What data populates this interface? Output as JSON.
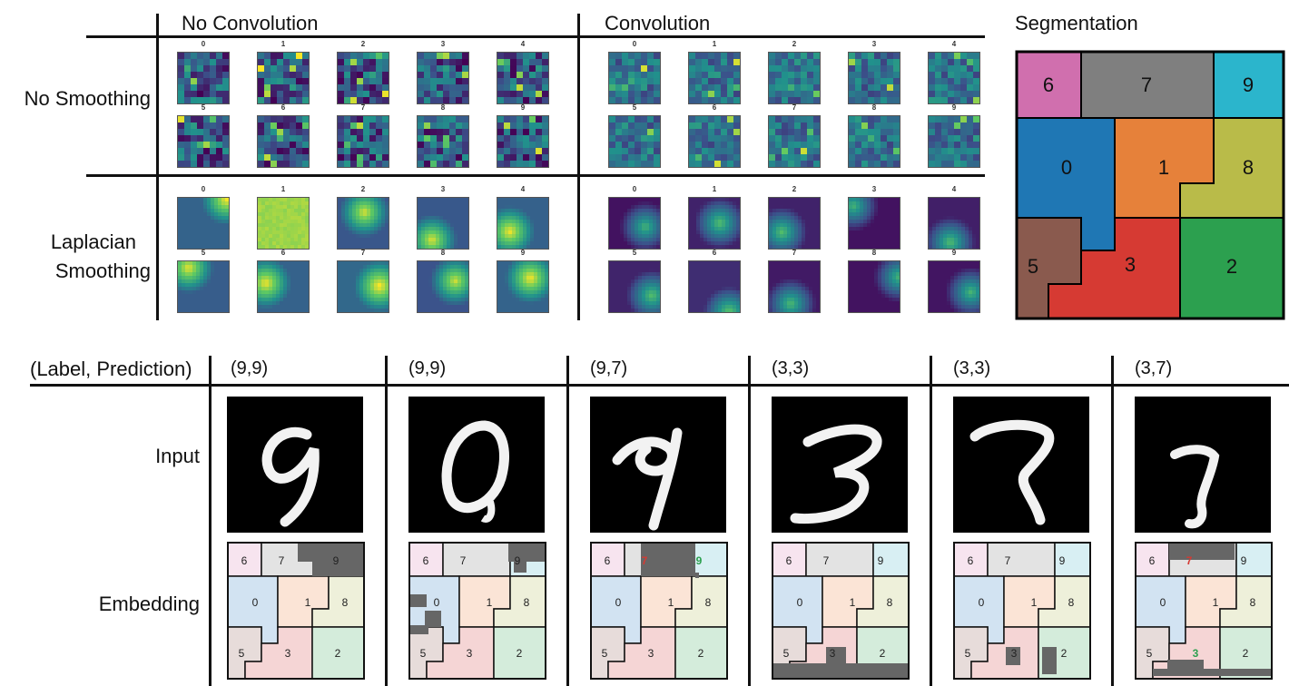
{
  "headers": {
    "no_convolution": "No Convolution",
    "convolution": "Convolution",
    "segmentation": "Segmentation"
  },
  "row_labels": {
    "no_smoothing": "No Smoothing",
    "laplacian_line1": "Laplacian",
    "laplacian_line2": "Smoothing",
    "label_prediction": "(Label, Prediction)",
    "input": "Input",
    "embedding": "Embedding"
  },
  "heatmap_indices": [
    "0",
    "1",
    "2",
    "3",
    "4",
    "5",
    "6",
    "7",
    "8",
    "9"
  ],
  "segmentation": {
    "regions": [
      {
        "label": "6",
        "color": "#d06fae"
      },
      {
        "label": "7",
        "color": "#7f7f7f"
      },
      {
        "label": "9",
        "color": "#2bb5cc"
      },
      {
        "label": "0",
        "color": "#1f77b4"
      },
      {
        "label": "1",
        "color": "#e6813a"
      },
      {
        "label": "8",
        "color": "#b9bb49"
      },
      {
        "label": "5",
        "color": "#8a5a4e"
      },
      {
        "label": "3",
        "color": "#d63a33"
      },
      {
        "label": "2",
        "color": "#2ca04f"
      }
    ]
  },
  "examples": [
    {
      "pair": "(9,9)",
      "digit": "9"
    },
    {
      "pair": "(9,9)",
      "digit": "0"
    },
    {
      "pair": "(9,7)",
      "digit": "9"
    },
    {
      "pair": "(3,3)",
      "digit": "3"
    },
    {
      "pair": "(3,3)",
      "digit": "7"
    },
    {
      "pair": "(3,7)",
      "digit": "7"
    }
  ],
  "embedding_labels": [
    "6",
    "7",
    "9",
    "0",
    "1",
    "8",
    "5",
    "3",
    "2"
  ],
  "colors": {
    "pale_6": "#f7e4ef",
    "pale_7": "#e3e3e3",
    "pale_9": "#d8eff3",
    "pale_0": "#d2e3f2",
    "pale_1": "#fbe4d6",
    "pale_8": "#eef0da",
    "pale_5": "#e7dcda",
    "pale_3": "#f5d5d5",
    "pale_2": "#d4ecdb",
    "activation": "#666666",
    "wrong_label": "#d63a33",
    "correct_label": "#2ca04f"
  }
}
